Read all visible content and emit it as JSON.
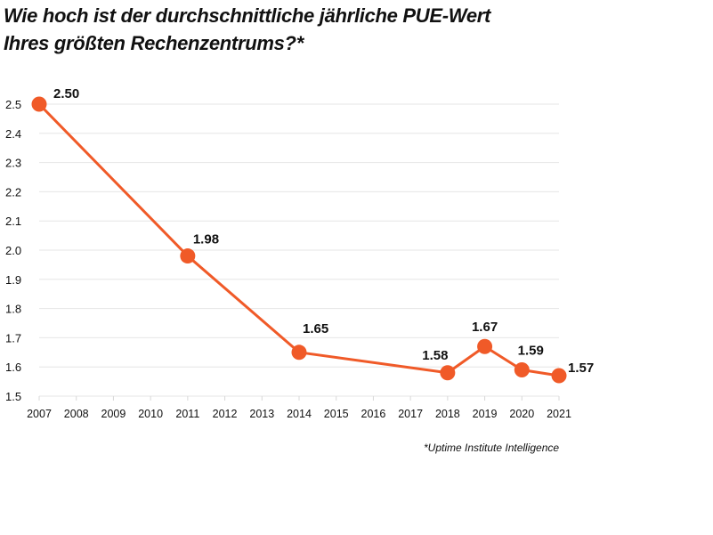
{
  "title": {
    "line1": "Wie hoch ist der durchschnittliche jährliche PUE-Wert",
    "line2": "Ihres größten Rechenzentrums?*"
  },
  "source": "*Uptime Institute Intelligence",
  "colors": {
    "series": "#f05a28",
    "grid": "#e6e6e6",
    "text": "#111111"
  },
  "chart_data": {
    "type": "line",
    "title": "Wie hoch ist der durchschnittliche jährliche PUE-Wert Ihres größten Rechenzentrums?*",
    "xlabel": "",
    "ylabel": "",
    "categories": [
      "2007",
      "2008",
      "2009",
      "2010",
      "2011",
      "2012",
      "2013",
      "2014",
      "2015",
      "2016",
      "2017",
      "2018",
      "2019",
      "2020",
      "2021"
    ],
    "yticks": [
      "1.5",
      "1.6",
      "1.7",
      "1.8",
      "1.9",
      "2.0",
      "2.1",
      "2.2",
      "2.3",
      "2.4",
      "2.5"
    ],
    "ylim": [
      1.5,
      2.5
    ],
    "grid": true,
    "legend": "none",
    "series": [
      {
        "name": "PUE",
        "points": [
          {
            "x": "2007",
            "y": 2.5,
            "label": "2.50"
          },
          {
            "x": "2011",
            "y": 1.98,
            "label": "1.98"
          },
          {
            "x": "2014",
            "y": 1.65,
            "label": "1.65"
          },
          {
            "x": "2018",
            "y": 1.58,
            "label": "1.58"
          },
          {
            "x": "2019",
            "y": 1.67,
            "label": "1.67"
          },
          {
            "x": "2020",
            "y": 1.59,
            "label": "1.59"
          },
          {
            "x": "2021",
            "y": 1.57,
            "label": "1.57"
          }
        ]
      }
    ],
    "annotations": [
      "*Uptime Institute Intelligence"
    ]
  }
}
